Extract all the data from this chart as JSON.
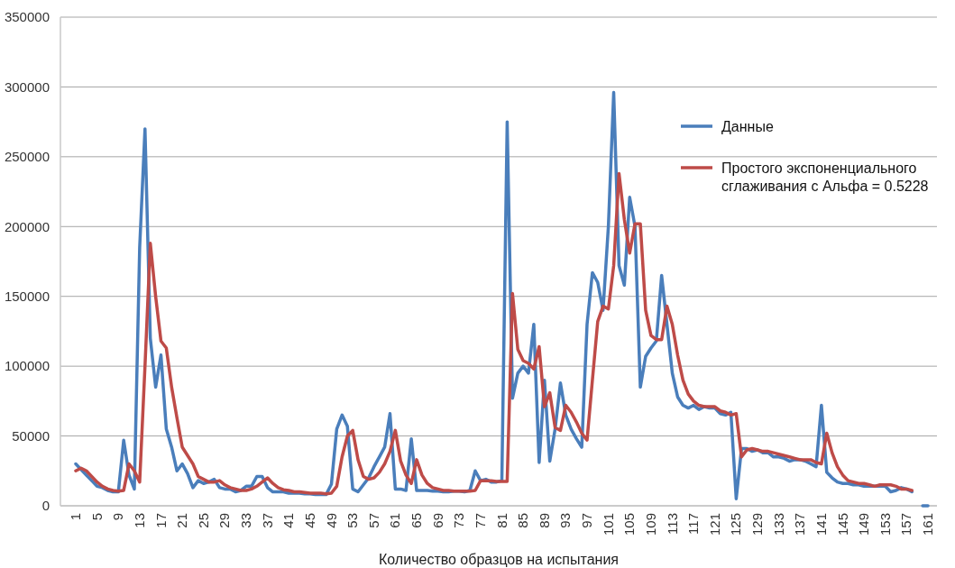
{
  "chart_data": {
    "type": "line",
    "xlabel": "Количество образцов на испытания",
    "categories": [
      "1",
      null,
      null,
      null,
      "5",
      null,
      null,
      null,
      "9",
      null,
      null,
      null,
      "13",
      null,
      null,
      null,
      "17",
      null,
      null,
      null,
      "21",
      null,
      null,
      null,
      "25",
      null,
      null,
      null,
      "29",
      null,
      null,
      null,
      "33",
      null,
      null,
      null,
      "37",
      null,
      null,
      null,
      "41",
      null,
      null,
      null,
      "45",
      null,
      null,
      null,
      "49",
      null,
      null,
      null,
      "53",
      null,
      null,
      null,
      "57",
      null,
      null,
      null,
      "61",
      null,
      null,
      null,
      "65",
      null,
      null,
      null,
      "69",
      null,
      null,
      null,
      "73",
      null,
      null,
      null,
      "77",
      null,
      null,
      null,
      "81",
      null,
      null,
      null,
      "85",
      null,
      null,
      null,
      "89",
      null,
      null,
      null,
      "93",
      null,
      null,
      null,
      "97",
      null,
      null,
      null,
      "101",
      null,
      null,
      null,
      "105",
      null,
      null,
      null,
      "109",
      null,
      null,
      null,
      "113",
      null,
      null,
      null,
      "117",
      null,
      null,
      null,
      "121",
      null,
      null,
      null,
      "125",
      null,
      null,
      null,
      "129",
      null,
      null,
      null,
      "133",
      null,
      null,
      null,
      "137",
      null,
      null,
      null,
      "141",
      null,
      null,
      null,
      "145",
      null,
      null,
      null,
      "149",
      null,
      null,
      null,
      "153",
      null,
      null,
      null,
      "157",
      null,
      null,
      null,
      "161"
    ],
    "series": [
      {
        "name": "Данные",
        "color": "#4a7ebb",
        "values": [
          30000,
          26000,
          22000,
          18000,
          14000,
          13000,
          11000,
          10000,
          10000,
          47000,
          22000,
          12000,
          185000,
          270000,
          120000,
          85000,
          108000,
          55000,
          42000,
          25000,
          30000,
          23000,
          13000,
          18000,
          16000,
          17000,
          19000,
          13000,
          12000,
          12000,
          10000,
          11000,
          14000,
          14000,
          21000,
          21000,
          13000,
          10000,
          10000,
          10000,
          9000,
          9000,
          9000,
          8500,
          8500,
          8000,
          8000,
          8000,
          15500,
          55000,
          65000,
          57000,
          12000,
          10000,
          15000,
          20000,
          28000,
          35000,
          42000,
          66000,
          12000,
          12000,
          11000,
          48000,
          11000,
          11000,
          11000,
          10500,
          10500,
          10000,
          10000,
          10500,
          10500,
          10000,
          11000,
          25000,
          18000,
          19000,
          17000,
          17000,
          18000,
          275000,
          77000,
          95000,
          100000,
          95000,
          130000,
          31000,
          90000,
          32000,
          55000,
          88000,
          65000,
          55000,
          48000,
          42000,
          130000,
          167000,
          160000,
          140000,
          200000,
          296000,
          172000,
          158000,
          221000,
          200000,
          85000,
          107000,
          113000,
          118000,
          165000,
          130000,
          95000,
          78000,
          72000,
          70000,
          72000,
          69000,
          71000,
          70000,
          70000,
          66000,
          65000,
          67000,
          5000,
          41000,
          41000,
          39000,
          40000,
          38000,
          38000,
          35000,
          35000,
          34000,
          32000,
          33000,
          33000,
          32000,
          30000,
          28000,
          72000,
          24000,
          20000,
          17000,
          16000,
          16000,
          15000,
          15000,
          14000,
          14000,
          14000,
          14000,
          14000,
          10000,
          11000,
          13000,
          12000,
          10000,
          null,
          0,
          0
        ]
      },
      {
        "name": "Простого экспоненциального сглаживания с Альфа = 0.5228",
        "color": "#be4b48",
        "values": [
          25000,
          27000,
          25000,
          21000,
          17000,
          14000,
          12000,
          11000,
          10500,
          11000,
          30000,
          25000,
          17000,
          100000,
          188000,
          150000,
          118000,
          113000,
          85000,
          63000,
          42000,
          36000,
          30000,
          21000,
          19000,
          17000,
          17000,
          18000,
          15000,
          13000,
          12000,
          11000,
          11000,
          12000,
          14000,
          17000,
          20000,
          16000,
          13000,
          11500,
          11000,
          10000,
          10000,
          9500,
          9000,
          9000,
          9000,
          8500,
          9000,
          14000,
          35000,
          50000,
          54000,
          33000,
          21000,
          19000,
          20000,
          24000,
          30000,
          39000,
          54000,
          32000,
          22000,
          16000,
          33000,
          22000,
          16000,
          13000,
          12000,
          11000,
          11000,
          10500,
          10500,
          10500,
          10500,
          11000,
          18000,
          18000,
          18000,
          17500,
          17500,
          17500,
          152000,
          112000,
          104000,
          102000,
          98000,
          114000,
          71000,
          81000,
          56000,
          54000,
          72000,
          67000,
          60000,
          52000,
          47000,
          90000,
          132000,
          143000,
          141000,
          172000,
          238000,
          205000,
          181000,
          202000,
          202000,
          140000,
          122000,
          119000,
          119000,
          143000,
          130000,
          108000,
          90000,
          80000,
          75000,
          72000,
          71000,
          71000,
          71000,
          68000,
          67000,
          65000,
          66000,
          35000,
          40000,
          41000,
          40000,
          39000,
          39000,
          38000,
          37000,
          36000,
          35000,
          34000,
          33000,
          33000,
          33000,
          31000,
          30000,
          52000,
          38000,
          28000,
          22000,
          18000,
          17000,
          16000,
          16000,
          15000,
          14000,
          15000,
          15000,
          15000,
          14000,
          12000,
          12000,
          11000,
          null,
          null,
          null
        ]
      }
    ],
    "ylim": [
      0,
      350000
    ],
    "yticks": [
      0,
      50000,
      100000,
      150000,
      200000,
      250000,
      300000,
      350000
    ],
    "grid": "y",
    "legend": "top right"
  }
}
